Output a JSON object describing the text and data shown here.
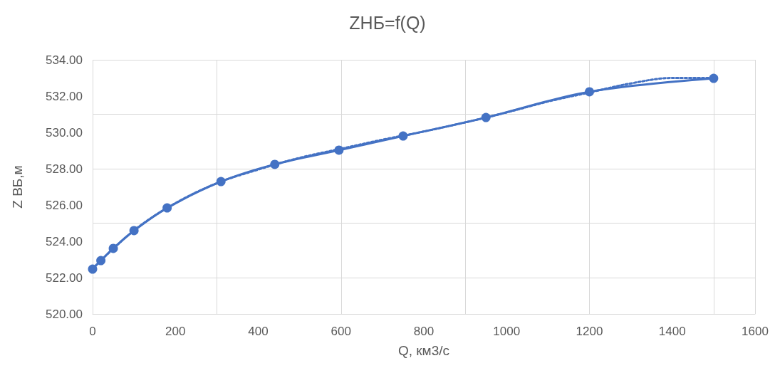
{
  "chart_data": {
    "type": "line",
    "title": "ZНБ=f(Q)",
    "xlabel": "Q, км3/с",
    "ylabel": "Z ВБ,м",
    "xlim": [
      0,
      1600
    ],
    "xticks": [
      0,
      200,
      400,
      600,
      800,
      1000,
      1200,
      1400,
      1600
    ],
    "ylim": [
      520,
      534
    ],
    "yticks": [
      {
        "value": 520,
        "label": "520.00"
      },
      {
        "value": 522,
        "label": "522.00"
      },
      {
        "value": 524,
        "label": "524.00"
      },
      {
        "value": 526,
        "label": "526.00"
      },
      {
        "value": 528,
        "label": "528.00"
      },
      {
        "value": 530,
        "label": "530.00"
      },
      {
        "value": 532,
        "label": "532.00"
      },
      {
        "value": 534,
        "label": "534.00"
      }
    ],
    "grid": true,
    "series": [
      {
        "color": "#4472c4",
        "marker": "circle",
        "line_style": "solid",
        "x": [
          0,
          20,
          50,
          100,
          180,
          310,
          440,
          595,
          750,
          950,
          1200,
          1500
        ],
        "values": [
          522.47,
          522.94,
          523.61,
          524.59,
          525.84,
          527.29,
          528.24,
          529.02,
          529.8,
          530.82,
          532.24,
          532.98
        ]
      },
      {
        "color": "#4472c4",
        "marker": "none",
        "line_style": "dotted",
        "x": [
          0,
          100,
          200,
          300,
          400,
          500,
          600,
          700,
          800,
          900,
          1000,
          1100,
          1200,
          1300,
          1400,
          1500
        ],
        "values": [
          522.5,
          524.6,
          526.1,
          527.2,
          527.95,
          528.6,
          529.1,
          529.6,
          530.05,
          530.55,
          531.1,
          531.7,
          532.2,
          532.7,
          533.0,
          533.0
        ]
      }
    ]
  }
}
